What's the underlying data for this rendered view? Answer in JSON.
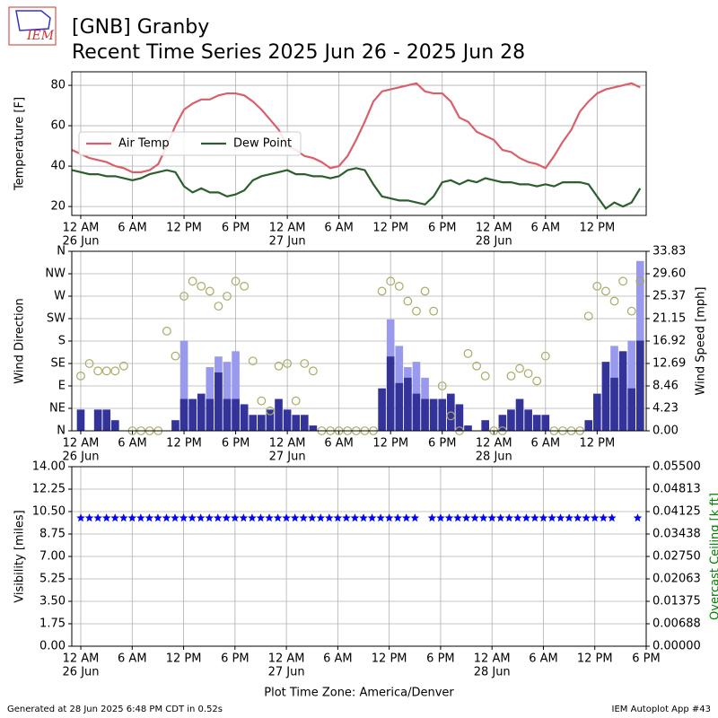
{
  "logo_text": "IEM",
  "title": [
    "[GNB] Granby",
    "Recent Time Series 2025 Jun 26 - 2025 Jun 28"
  ],
  "footer_left": "Generated at 28 Jun 2025 6:48 PM CDT in 0.52s",
  "footer_right": "IEM Autoplot App #43",
  "chart_data": [
    {
      "type": "line",
      "ylabel": "Temperature [F]",
      "grid": true,
      "legend": "center left",
      "xlim": [
        -1.04,
        65.7
      ],
      "ylim": [
        15.6,
        86.7
      ],
      "yticks": [
        20,
        40,
        60,
        80
      ],
      "xticks": [
        {
          "value": 0,
          "label": "12 AM"
        },
        {
          "value": 6,
          "label": "6 AM"
        },
        {
          "value": 12,
          "label": "12 PM"
        },
        {
          "value": 18,
          "label": "6 PM"
        },
        {
          "value": 24,
          "label": "12 AM"
        },
        {
          "value": 30,
          "label": "6 AM"
        },
        {
          "value": 36,
          "label": "12 PM"
        },
        {
          "value": 42,
          "label": "6 PM"
        },
        {
          "value": 48,
          "label": "12 AM"
        },
        {
          "value": 54,
          "label": "6 AM"
        },
        {
          "value": 60,
          "label": "12 PM"
        }
      ],
      "xtick_dates": [
        {
          "value": 0,
          "label": "26 Jun"
        },
        {
          "value": 24,
          "label": "27 Jun"
        },
        {
          "value": 48,
          "label": "28 Jun"
        }
      ],
      "x": [
        -1,
        0,
        1,
        2,
        3,
        4,
        5,
        6,
        7,
        8,
        9,
        10,
        11,
        12,
        13,
        14,
        15,
        16,
        17,
        18,
        19,
        20,
        21,
        22,
        23,
        24,
        25,
        26,
        27,
        28,
        29,
        30,
        31,
        32,
        33,
        34,
        35,
        36,
        37,
        38,
        39,
        40,
        41,
        42,
        43,
        44,
        45,
        46,
        47,
        48,
        49,
        50,
        51,
        52,
        53,
        54,
        55,
        56,
        57,
        58,
        59,
        60,
        61,
        62,
        63,
        64,
        65
      ],
      "series": [
        {
          "name": "Air Temp",
          "color": "#d9606a",
          "values": [
            48,
            46,
            44,
            43,
            42,
            40,
            39,
            37,
            37,
            38,
            41,
            50,
            60,
            68,
            71,
            73,
            73,
            75,
            76,
            76,
            75,
            72,
            68,
            63,
            58,
            50,
            48,
            45,
            44,
            42,
            39,
            40,
            45,
            53,
            62,
            72,
            77,
            78,
            79,
            80,
            81,
            77,
            76,
            76,
            72,
            64,
            62,
            57,
            55,
            53,
            48,
            47,
            44,
            42,
            41,
            39,
            45,
            52,
            58,
            67,
            72,
            76,
            78,
            79,
            80,
            81,
            79
          ]
        },
        {
          "name": "Dew Point",
          "color": "#2e5e2e",
          "values": [
            38,
            37,
            36,
            36,
            35,
            35,
            34,
            33,
            34,
            36,
            37,
            38,
            37,
            30,
            27,
            29,
            27,
            27,
            25,
            26,
            28,
            33,
            35,
            36,
            37,
            38,
            36,
            36,
            35,
            35,
            34,
            35,
            38,
            39,
            38,
            31,
            25,
            24,
            23,
            23,
            22,
            21,
            25,
            32,
            33,
            31,
            33,
            32,
            34,
            33,
            32,
            32,
            31,
            31,
            30,
            31,
            30,
            32,
            32,
            32,
            31,
            25,
            19,
            22,
            20,
            22,
            29
          ]
        }
      ]
    },
    {
      "type": "bar",
      "ylabel": "Wind Direction",
      "y2label": "Wind Speed [mph]",
      "grid": true,
      "xlim": [
        -1.04,
        65.7
      ],
      "ylim": [
        0,
        360
      ],
      "yticks": [
        {
          "value": 0,
          "label": "N"
        },
        {
          "value": 45,
          "label": "NE"
        },
        {
          "value": 90,
          "label": "E"
        },
        {
          "value": 135,
          "label": "SE"
        },
        {
          "value": 180,
          "label": "S"
        },
        {
          "value": 225,
          "label": "SW"
        },
        {
          "value": 270,
          "label": "W"
        },
        {
          "value": 315,
          "label": "NW"
        },
        {
          "value": 360,
          "label": "N"
        }
      ],
      "y2lim": [
        0,
        33.83
      ],
      "y2ticks": [
        {
          "value": 0,
          "label": "0.00"
        },
        4.23,
        8.46,
        12.69,
        16.92,
        21.15,
        25.37,
        {
          "value": 29.6,
          "label": "29.60"
        },
        33.83
      ],
      "xticks": [
        {
          "value": 0,
          "label": "12 AM"
        },
        {
          "value": 6,
          "label": "6 AM"
        },
        {
          "value": 12,
          "label": "12 PM"
        },
        {
          "value": 18,
          "label": "6 PM"
        },
        {
          "value": 24,
          "label": "12 AM"
        },
        {
          "value": 30,
          "label": "6 AM"
        },
        {
          "value": 36,
          "label": "12 PM"
        },
        {
          "value": 42,
          "label": "6 PM"
        },
        {
          "value": 48,
          "label": "12 AM"
        },
        {
          "value": 54,
          "label": "6 AM"
        },
        {
          "value": 60,
          "label": "12 PM"
        }
      ],
      "xtick_dates": [
        {
          "value": 0,
          "label": "26 Jun"
        },
        {
          "value": 24,
          "label": "27 Jun"
        },
        {
          "value": 48,
          "label": "28 Jun"
        }
      ],
      "x": [
        0,
        1,
        2,
        3,
        4,
        5,
        6,
        7,
        8,
        9,
        10,
        11,
        12,
        13,
        14,
        15,
        16,
        17,
        18,
        19,
        20,
        21,
        22,
        23,
        24,
        25,
        26,
        27,
        28,
        29,
        30,
        31,
        32,
        33,
        34,
        35,
        36,
        37,
        38,
        39,
        40,
        41,
        42,
        43,
        44,
        45,
        46,
        47,
        48,
        49,
        50,
        51,
        52,
        53,
        54,
        55,
        56,
        57,
        58,
        59,
        60,
        61,
        62,
        63,
        64,
        65
      ],
      "series": [
        {
          "type": "bar",
          "axis": "y2",
          "color": "#9999ee",
          "values": [
            null,
            null,
            null,
            null,
            null,
            null,
            null,
            null,
            null,
            null,
            null,
            null,
            17,
            null,
            null,
            12,
            14,
            13,
            15,
            null,
            null,
            null,
            null,
            null,
            null,
            null,
            null,
            null,
            null,
            null,
            null,
            null,
            null,
            null,
            null,
            null,
            21,
            16,
            12,
            13,
            10,
            null,
            null,
            null,
            null,
            null,
            null,
            null,
            null,
            null,
            null,
            null,
            null,
            null,
            null,
            null,
            null,
            null,
            null,
            null,
            null,
            null,
            16,
            12,
            17,
            32
          ]
        },
        {
          "type": "bar",
          "axis": "y2",
          "color": "#333399",
          "values": [
            4,
            0,
            4,
            4,
            2,
            0,
            0,
            0,
            0,
            0,
            0,
            2,
            6,
            6,
            7,
            6,
            11,
            6,
            6,
            5,
            3,
            3,
            4,
            6,
            4,
            3,
            3,
            1,
            0,
            0,
            0,
            0,
            0,
            0,
            0,
            8,
            14,
            9,
            10,
            7,
            6,
            6,
            6,
            7,
            5,
            1,
            0,
            2,
            0,
            3,
            4,
            6,
            4,
            3,
            3,
            0,
            0,
            0,
            0,
            2,
            7,
            13,
            10,
            15,
            8,
            17
          ]
        },
        {
          "type": "scatter",
          "color": "#aaaa66",
          "values": [
            110,
            135,
            120,
            120,
            120,
            130,
            0,
            0,
            0,
            0,
            200,
            150,
            270,
            300,
            290,
            280,
            250,
            270,
            300,
            290,
            140,
            60,
            40,
            130,
            135,
            60,
            135,
            120,
            0,
            0,
            0,
            0,
            0,
            0,
            0,
            280,
            300,
            290,
            260,
            240,
            280,
            240,
            90,
            30,
            0,
            155,
            130,
            110,
            0,
            0,
            110,
            125,
            115,
            100,
            150,
            0,
            0,
            0,
            0,
            230,
            290,
            280,
            260,
            300,
            240,
            300
          ]
        }
      ]
    },
    {
      "type": "scatter",
      "ylabel": "Visibility [miles]",
      "y2label": "Overcast Ceiling [k ft]",
      "y2color": "#008000",
      "grid": true,
      "xlabel": "Plot Time Zone: America/Denver",
      "xlim": [
        -1.05,
        66
      ],
      "ylim": [
        0,
        14
      ],
      "yticks": [
        {
          "value": 0,
          "label": "0.00"
        },
        1.75,
        {
          "value": 3.5,
          "label": "3.50"
        },
        5.25,
        {
          "value": 7,
          "label": "7.00"
        },
        8.75,
        {
          "value": 10.5,
          "label": "10.50"
        },
        12.25,
        {
          "value": 14,
          "label": "14.00"
        }
      ],
      "y2lim": [
        0,
        0.055
      ],
      "y2ticks": [
        {
          "value": 0,
          "label": "0.00000"
        },
        {
          "value": 0.006875,
          "label": "0.00688"
        },
        {
          "value": 0.01375,
          "label": "0.01375"
        },
        {
          "value": 0.020625,
          "label": "0.02063"
        },
        {
          "value": 0.0275,
          "label": "0.02750"
        },
        {
          "value": 0.034375,
          "label": "0.03438"
        },
        {
          "value": 0.04125,
          "label": "0.04125"
        },
        {
          "value": 0.048125,
          "label": "0.04813"
        },
        {
          "value": 0.055,
          "label": "0.05500"
        }
      ],
      "xticks": [
        {
          "value": 0,
          "label": "12 AM"
        },
        {
          "value": 6,
          "label": "6 AM"
        },
        {
          "value": 12,
          "label": "12 PM"
        },
        {
          "value": 18,
          "label": "6 PM"
        },
        {
          "value": 24,
          "label": "12 AM"
        },
        {
          "value": 30,
          "label": "6 AM"
        },
        {
          "value": 36,
          "label": "12 PM"
        },
        {
          "value": 42,
          "label": "6 PM"
        },
        {
          "value": 48,
          "label": "12 AM"
        },
        {
          "value": 54,
          "label": "6 AM"
        },
        {
          "value": 60,
          "label": "12 PM"
        },
        {
          "value": 66,
          "label": "6 PM"
        }
      ],
      "xtick_dates": [
        {
          "value": 0,
          "label": "26 Jun"
        },
        {
          "value": 24,
          "label": "27 Jun"
        },
        {
          "value": 48,
          "label": "28 Jun"
        }
      ],
      "x": [
        0,
        1,
        2,
        3,
        4,
        5,
        6,
        7,
        8,
        9,
        10,
        11,
        12,
        13,
        14,
        15,
        16,
        17,
        18,
        19,
        20,
        21,
        22,
        23,
        24,
        25,
        26,
        27,
        28,
        29,
        30,
        31,
        32,
        33,
        34,
        35,
        36,
        37,
        38,
        39,
        40,
        41,
        42,
        43,
        44,
        45,
        46,
        47,
        48,
        49,
        50,
        51,
        52,
        53,
        54,
        55,
        56,
        57,
        58,
        59,
        60,
        61,
        62,
        63,
        64,
        65
      ],
      "series": [
        {
          "type": "star",
          "color": "#0000ff",
          "values": [
            10,
            10,
            10,
            10,
            10,
            10,
            10,
            10,
            10,
            10,
            10,
            10,
            10,
            10,
            10,
            10,
            10,
            10,
            10,
            10,
            10,
            10,
            10,
            10,
            10,
            10,
            10,
            10,
            10,
            10,
            10,
            10,
            10,
            10,
            10,
            10,
            10,
            10,
            10,
            10,
            null,
            10,
            10,
            10,
            10,
            10,
            10,
            10,
            10,
            10,
            10,
            10,
            10,
            10,
            10,
            10,
            10,
            10,
            10,
            10,
            10,
            10,
            10,
            null,
            null,
            10
          ]
        }
      ]
    }
  ]
}
